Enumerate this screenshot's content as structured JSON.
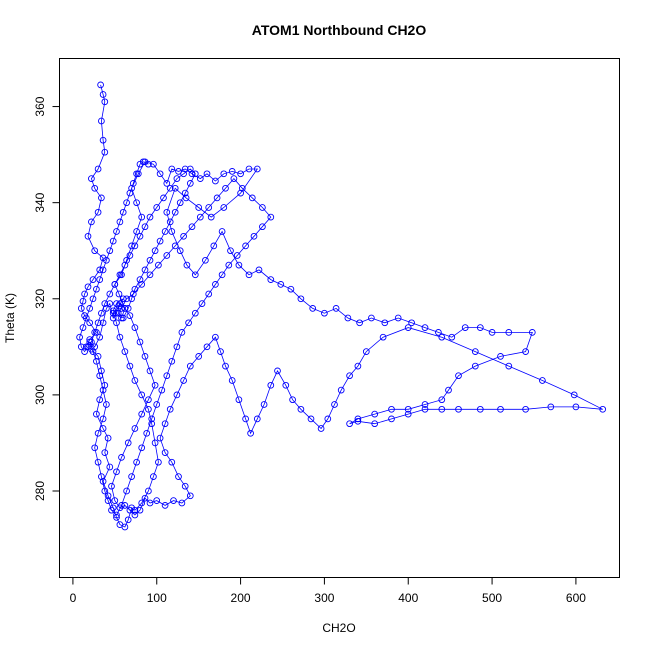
{
  "chart_data": {
    "type": "scatter",
    "title": "ATOM1 Northbound CH2O",
    "xlabel": "CH2O",
    "ylabel": "Theta (K)",
    "xlim": [
      -16,
      652
    ],
    "ylim": [
      262,
      370
    ],
    "x_ticks": [
      0,
      100,
      200,
      300,
      400,
      500,
      600
    ],
    "y_ticks": [
      280,
      300,
      320,
      340,
      360
    ],
    "grid": false,
    "legend": "none",
    "style": {
      "color": "#0000ff",
      "marker": "open-circle",
      "connected": true
    },
    "points": [
      [
        33,
        364.5
      ],
      [
        36,
        362.5
      ],
      [
        38,
        361
      ],
      [
        34,
        357
      ],
      [
        36,
        353
      ],
      [
        38,
        350.5
      ],
      [
        30,
        347
      ],
      [
        22,
        345
      ],
      [
        26,
        343
      ],
      [
        34,
        341
      ],
      [
        30,
        338
      ],
      [
        22,
        336
      ],
      [
        18,
        333
      ],
      [
        26,
        330
      ],
      [
        36,
        328.5
      ],
      [
        32,
        326
      ],
      [
        24,
        324
      ],
      [
        18,
        322.5
      ],
      [
        14,
        321
      ],
      [
        12,
        319.5
      ],
      [
        10,
        318
      ],
      [
        14,
        316.5
      ],
      [
        20,
        315
      ],
      [
        28,
        313
      ],
      [
        20,
        311.5
      ],
      [
        16,
        310
      ],
      [
        22,
        309.5
      ],
      [
        30,
        308
      ],
      [
        34,
        305
      ],
      [
        38,
        302
      ],
      [
        32,
        299
      ],
      [
        28,
        296
      ],
      [
        36,
        293
      ],
      [
        42,
        291
      ],
      [
        38,
        288
      ],
      [
        44,
        285
      ],
      [
        36,
        282
      ],
      [
        42,
        279
      ],
      [
        48,
        276.5
      ],
      [
        52,
        274.5
      ],
      [
        56,
        273
      ],
      [
        62,
        272.5
      ],
      [
        66,
        274
      ],
      [
        70,
        276.5
      ],
      [
        74,
        276
      ],
      [
        82,
        277.5
      ],
      [
        90,
        280
      ],
      [
        96,
        283
      ],
      [
        102,
        286
      ],
      [
        98,
        290
      ],
      [
        94,
        294
      ],
      [
        90,
        297
      ],
      [
        82,
        300
      ],
      [
        74,
        303
      ],
      [
        68,
        306
      ],
      [
        62,
        309
      ],
      [
        56,
        312
      ],
      [
        52,
        315
      ],
      [
        48,
        317
      ],
      [
        55,
        318.5
      ],
      [
        60,
        320
      ],
      [
        52,
        319
      ],
      [
        48,
        317.5
      ],
      [
        58,
        316
      ],
      [
        62,
        318
      ],
      [
        55,
        321
      ],
      [
        50,
        323
      ],
      [
        58,
        325
      ],
      [
        64,
        328
      ],
      [
        70,
        331
      ],
      [
        76,
        334
      ],
      [
        82,
        337
      ],
      [
        76,
        340
      ],
      [
        70,
        343
      ],
      [
        78,
        346
      ],
      [
        86,
        348.5
      ],
      [
        96,
        348
      ],
      [
        104,
        346
      ],
      [
        112,
        344
      ],
      [
        118,
        347
      ],
      [
        126,
        346.5
      ],
      [
        134,
        347
      ],
      [
        142,
        346
      ],
      [
        152,
        345
      ],
      [
        160,
        346
      ],
      [
        170,
        344.5
      ],
      [
        180,
        346
      ],
      [
        190,
        346.5
      ],
      [
        200,
        346
      ],
      [
        210,
        347
      ],
      [
        220,
        347
      ],
      [
        200,
        342
      ],
      [
        180,
        339
      ],
      [
        165,
        337
      ],
      [
        150,
        339
      ],
      [
        135,
        341
      ],
      [
        122,
        343
      ],
      [
        112,
        338
      ],
      [
        118,
        334
      ],
      [
        128,
        330
      ],
      [
        136,
        327
      ],
      [
        146,
        325
      ],
      [
        158,
        328
      ],
      [
        168,
        331
      ],
      [
        178,
        334
      ],
      [
        188,
        330
      ],
      [
        198,
        327
      ],
      [
        210,
        325
      ],
      [
        222,
        326
      ],
      [
        236,
        324
      ],
      [
        248,
        323
      ],
      [
        260,
        322
      ],
      [
        272,
        320
      ],
      [
        286,
        318
      ],
      [
        300,
        317
      ],
      [
        314,
        318
      ],
      [
        328,
        316
      ],
      [
        342,
        315
      ],
      [
        356,
        316
      ],
      [
        372,
        315
      ],
      [
        388,
        316
      ],
      [
        404,
        315
      ],
      [
        420,
        314
      ],
      [
        436,
        313
      ],
      [
        452,
        312
      ],
      [
        468,
        314
      ],
      [
        486,
        314
      ],
      [
        500,
        313
      ],
      [
        520,
        313
      ],
      [
        548,
        313
      ],
      [
        540,
        309
      ],
      [
        510,
        308
      ],
      [
        480,
        306
      ],
      [
        460,
        304
      ],
      [
        448,
        301
      ],
      [
        440,
        299
      ],
      [
        420,
        298
      ],
      [
        400,
        297
      ],
      [
        380,
        297
      ],
      [
        360,
        296
      ],
      [
        340,
        295
      ],
      [
        330,
        294
      ],
      [
        340,
        294.5
      ],
      [
        360,
        294
      ],
      [
        380,
        295
      ],
      [
        400,
        296
      ],
      [
        420,
        297
      ],
      [
        440,
        297
      ],
      [
        460,
        297
      ],
      [
        486,
        297
      ],
      [
        510,
        297
      ],
      [
        540,
        297
      ],
      [
        570,
        297.5
      ],
      [
        600,
        297.5
      ],
      [
        632,
        297
      ],
      [
        598,
        300
      ],
      [
        560,
        303
      ],
      [
        520,
        306
      ],
      [
        480,
        309
      ],
      [
        440,
        312
      ],
      [
        400,
        314
      ],
      [
        370,
        312
      ],
      [
        350,
        309
      ],
      [
        340,
        306
      ],
      [
        330,
        304
      ],
      [
        320,
        301
      ],
      [
        312,
        298
      ],
      [
        304,
        295
      ],
      [
        296,
        293
      ],
      [
        284,
        295
      ],
      [
        272,
        297
      ],
      [
        262,
        299
      ],
      [
        254,
        302
      ],
      [
        244,
        305
      ],
      [
        236,
        302
      ],
      [
        228,
        298
      ],
      [
        220,
        295
      ],
      [
        212,
        292
      ],
      [
        206,
        295
      ],
      [
        198,
        299
      ],
      [
        190,
        303
      ],
      [
        182,
        306
      ],
      [
        176,
        309
      ],
      [
        170,
        312
      ],
      [
        160,
        310
      ],
      [
        150,
        308
      ],
      [
        140,
        306
      ],
      [
        132,
        303
      ],
      [
        124,
        300
      ],
      [
        116,
        297
      ],
      [
        110,
        294
      ],
      [
        104,
        291
      ],
      [
        110,
        288
      ],
      [
        118,
        286
      ],
      [
        126,
        283
      ],
      [
        134,
        281
      ],
      [
        140,
        279
      ],
      [
        130,
        277.5
      ],
      [
        120,
        278
      ],
      [
        110,
        277
      ],
      [
        100,
        278
      ],
      [
        92,
        277.5
      ],
      [
        86,
        278.5
      ],
      [
        80,
        276
      ],
      [
        74,
        275
      ],
      [
        68,
        276
      ],
      [
        62,
        277
      ],
      [
        56,
        276.5
      ],
      [
        50,
        278
      ],
      [
        46,
        281
      ],
      [
        52,
        284
      ],
      [
        58,
        287
      ],
      [
        66,
        290
      ],
      [
        74,
        293
      ],
      [
        82,
        296
      ],
      [
        90,
        299
      ],
      [
        98,
        302
      ],
      [
        92,
        305
      ],
      [
        86,
        308
      ],
      [
        80,
        311
      ],
      [
        74,
        314
      ],
      [
        68,
        316.5
      ],
      [
        62,
        318
      ],
      [
        56,
        319
      ],
      [
        52,
        317
      ],
      [
        48,
        316
      ],
      [
        44,
        319
      ],
      [
        40,
        318
      ],
      [
        36,
        315
      ],
      [
        32,
        312
      ],
      [
        26,
        310
      ],
      [
        20,
        311
      ],
      [
        24,
        309
      ],
      [
        28,
        307
      ],
      [
        32,
        304
      ],
      [
        36,
        301
      ],
      [
        40,
        298
      ],
      [
        36,
        295
      ],
      [
        30,
        292
      ],
      [
        26,
        289
      ],
      [
        30,
        286
      ],
      [
        34,
        283
      ],
      [
        38,
        280
      ],
      [
        42,
        278
      ],
      [
        46,
        276
      ],
      [
        52,
        275
      ],
      [
        58,
        277
      ],
      [
        64,
        280
      ],
      [
        70,
        283
      ],
      [
        76,
        286
      ],
      [
        82,
        289
      ],
      [
        88,
        292
      ],
      [
        94,
        295
      ],
      [
        100,
        298
      ],
      [
        106,
        301
      ],
      [
        112,
        304
      ],
      [
        118,
        307
      ],
      [
        124,
        310
      ],
      [
        130,
        313
      ],
      [
        138,
        315
      ],
      [
        146,
        317
      ],
      [
        154,
        319
      ],
      [
        162,
        321
      ],
      [
        170,
        323
      ],
      [
        178,
        325
      ],
      [
        186,
        327
      ],
      [
        196,
        329
      ],
      [
        206,
        331
      ],
      [
        216,
        333
      ],
      [
        226,
        335
      ],
      [
        236,
        337
      ],
      [
        226,
        339
      ],
      [
        214,
        341
      ],
      [
        202,
        343
      ],
      [
        192,
        345
      ],
      [
        182,
        343
      ],
      [
        172,
        341
      ],
      [
        162,
        339
      ],
      [
        152,
        337
      ],
      [
        142,
        335
      ],
      [
        132,
        333
      ],
      [
        122,
        331
      ],
      [
        112,
        329
      ],
      [
        102,
        327
      ],
      [
        92,
        325
      ],
      [
        82,
        323
      ],
      [
        72,
        321
      ],
      [
        64,
        320
      ],
      [
        58,
        318
      ],
      [
        54,
        317
      ],
      [
        60,
        316
      ],
      [
        66,
        318
      ],
      [
        70,
        320
      ],
      [
        74,
        322
      ],
      [
        80,
        324
      ],
      [
        86,
        326
      ],
      [
        92,
        328
      ],
      [
        98,
        330
      ],
      [
        104,
        332
      ],
      [
        110,
        334
      ],
      [
        116,
        336
      ],
      [
        122,
        338
      ],
      [
        128,
        340
      ],
      [
        134,
        342
      ],
      [
        140,
        344
      ],
      [
        146,
        346
      ],
      [
        140,
        347
      ],
      [
        132,
        346
      ],
      [
        124,
        345
      ],
      [
        116,
        343
      ],
      [
        108,
        341
      ],
      [
        100,
        339
      ],
      [
        92,
        337
      ],
      [
        86,
        335
      ],
      [
        80,
        333
      ],
      [
        74,
        331
      ],
      [
        68,
        329
      ],
      [
        62,
        327
      ],
      [
        56,
        325
      ],
      [
        50,
        323
      ],
      [
        44,
        321
      ],
      [
        38,
        319
      ],
      [
        34,
        317
      ],
      [
        30,
        315
      ],
      [
        26,
        313
      ],
      [
        22,
        311
      ],
      [
        18,
        310
      ],
      [
        14,
        309
      ],
      [
        10,
        310
      ],
      [
        8,
        312
      ],
      [
        12,
        314
      ],
      [
        16,
        316
      ],
      [
        20,
        318
      ],
      [
        24,
        320
      ],
      [
        28,
        322
      ],
      [
        32,
        324
      ],
      [
        36,
        326
      ],
      [
        40,
        328
      ],
      [
        44,
        330
      ],
      [
        48,
        332
      ],
      [
        52,
        334
      ],
      [
        56,
        336
      ],
      [
        60,
        338
      ],
      [
        64,
        340
      ],
      [
        68,
        342
      ],
      [
        72,
        344
      ],
      [
        76,
        346
      ],
      [
        80,
        348
      ],
      [
        84,
        348.5
      ],
      [
        90,
        348
      ]
    ]
  }
}
